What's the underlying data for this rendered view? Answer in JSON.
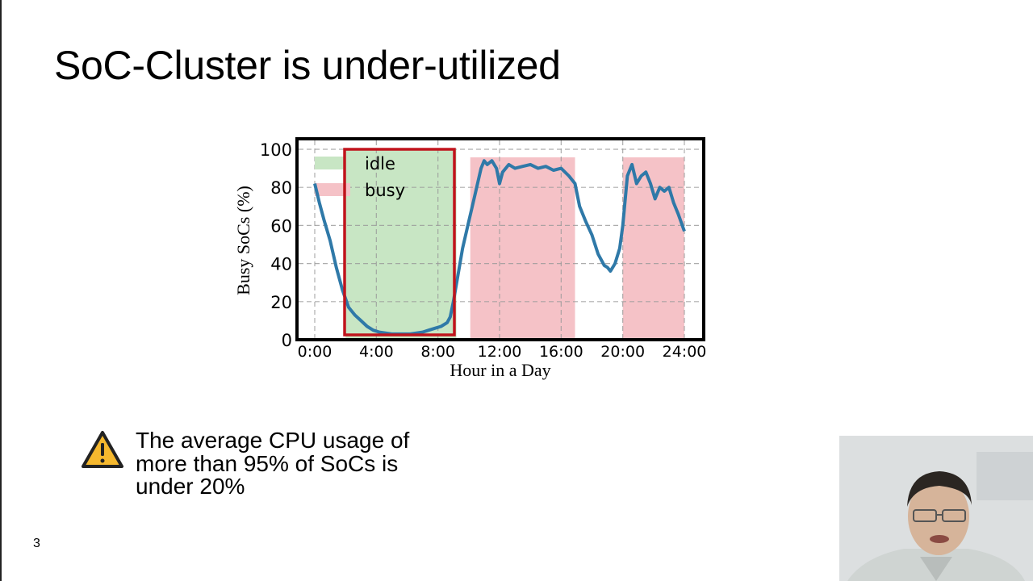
{
  "slide": {
    "title": "SoC-Cluster is under-utilized",
    "slide_number": "3",
    "bullet": {
      "icon": "warning-icon",
      "lines": [
        "The average CPU usage of",
        "more than 95% of SoCs is",
        "under 20%"
      ]
    },
    "webcam": {
      "description": "presenter video feed"
    }
  },
  "chart_data": {
    "type": "line",
    "title": "",
    "xlabel": "Hour in a Day",
    "ylabel": "Busy SoCs (%)",
    "xlim": [
      0,
      24
    ],
    "ylim": [
      0,
      100
    ],
    "x_ticks": [
      "0:00",
      "4:00",
      "8:00",
      "12:00",
      "16:00",
      "20:00",
      "24:00"
    ],
    "y_ticks": [
      "0",
      "20",
      "40",
      "60",
      "80",
      "100"
    ],
    "grid": true,
    "legend": [
      {
        "label": "idle",
        "color": "#c8e6c4"
      },
      {
        "label": "busy",
        "color": "#f5c2c7"
      }
    ],
    "legend_position": "upper left",
    "line_color": "#2f79a8",
    "series": [
      {
        "name": "Busy SoCs",
        "x": [
          0,
          0.3,
          0.6,
          1.0,
          1.4,
          1.8,
          2.2,
          2.6,
          3.0,
          3.4,
          3.8,
          4.2,
          4.6,
          5.0,
          5.4,
          5.8,
          6.2,
          6.6,
          7.0,
          7.4,
          7.8,
          8.2,
          8.6,
          8.8,
          9.0,
          9.3,
          9.6,
          10.0,
          10.4,
          10.8,
          11.0,
          11.2,
          11.5,
          11.8,
          12.0,
          12.2,
          12.6,
          13.0,
          13.5,
          14.0,
          14.5,
          15.0,
          15.5,
          16.0,
          16.5,
          16.9,
          17.2,
          17.6,
          18.0,
          18.4,
          18.8,
          19.0,
          19.2,
          19.5,
          19.8,
          20.0,
          20.3,
          20.6,
          20.9,
          21.2,
          21.5,
          21.8,
          22.1,
          22.4,
          22.7,
          23.0,
          23.3,
          23.6,
          24.0
        ],
        "y": [
          82,
          72,
          63,
          52,
          38,
          26,
          17,
          13,
          10,
          7,
          5,
          4,
          3.5,
          3,
          3,
          3,
          3,
          3.5,
          4,
          5,
          6,
          7,
          9,
          12,
          20,
          34,
          48,
          62,
          76,
          90,
          94,
          92,
          94,
          90,
          82,
          88,
          92,
          90,
          91,
          92,
          90,
          91,
          89,
          90,
          86,
          82,
          70,
          62,
          55,
          45,
          39,
          38,
          36,
          40,
          48,
          60,
          86,
          92,
          82,
          86,
          88,
          82,
          74,
          80,
          78,
          80,
          72,
          66,
          57
        ]
      }
    ],
    "shaded_regions": [
      {
        "label": "idle",
        "x_start": 2.0,
        "x_end": 9.2,
        "color": "#c8e6c4"
      },
      {
        "label": "busy",
        "x_start": 10.1,
        "x_end": 16.9,
        "color": "#f5c2c7"
      },
      {
        "label": "busy",
        "x_start": 20.0,
        "x_end": 24.0,
        "color": "#f5c2c7"
      }
    ],
    "annotations": [
      {
        "type": "rectangle",
        "x_start": 2.0,
        "x_end": 9.2,
        "y_start": 3,
        "y_end": 100,
        "color": "#c0141c"
      }
    ]
  }
}
